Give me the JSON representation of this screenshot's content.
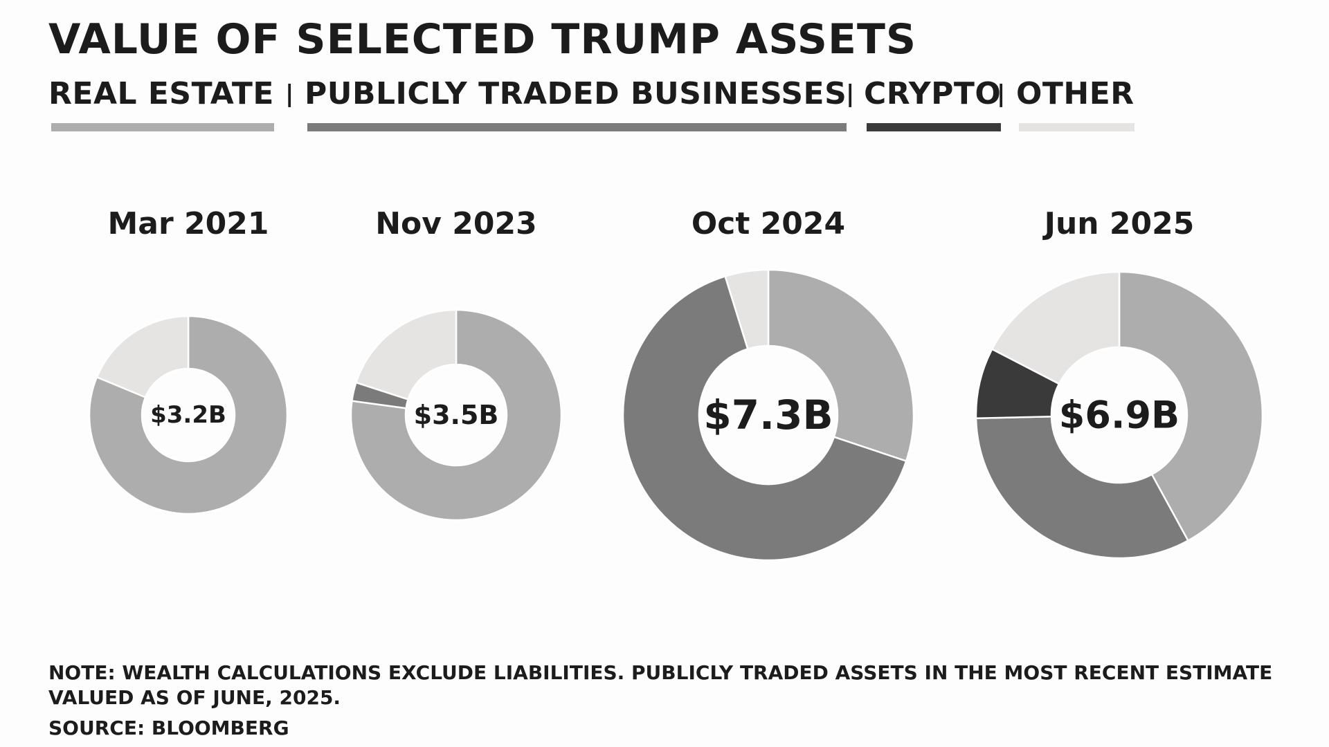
{
  "title": "VALUE OF SELECTED TRUMP ASSETS",
  "legend": [
    {
      "label": "REAL ESTATE",
      "color": "#adadad"
    },
    {
      "label": "PUBLICLY TRADED BUSINESSES",
      "color": "#7b7b7b"
    },
    {
      "label": "CRYPTO",
      "color": "#3a3a3a"
    },
    {
      "label": "OTHER",
      "color": "#e5e4e3"
    }
  ],
  "legend_separator": "|",
  "chart_data": {
    "type": "pie",
    "variant": "donut",
    "unit": "$B",
    "series_names": [
      "REAL ESTATE",
      "PUBLICLY TRADED BUSINESSES",
      "CRYPTO",
      "OTHER"
    ],
    "charts": [
      {
        "label": "Mar 2021",
        "total": 3.2,
        "total_label": "$3.2B",
        "values": [
          2.6,
          0,
          0,
          0.6
        ]
      },
      {
        "label": "Nov 2023",
        "total": 3.5,
        "total_label": "$3.5B",
        "values": [
          2.7,
          0.1,
          0,
          0.7
        ]
      },
      {
        "label": "Oct 2024",
        "total": 7.3,
        "total_label": "$7.3B",
        "values": [
          2.2,
          4.75,
          0,
          0.35
        ]
      },
      {
        "label": "Jun 2025",
        "total": 6.9,
        "total_label": "$6.9B",
        "values": [
          2.9,
          2.25,
          0.55,
          1.2
        ]
      }
    ]
  },
  "note": "NOTE: WEALTH CALCULATIONS EXCLUDE LIABILITIES. PUBLICLY TRADED ASSETS IN THE MOST RECENT ESTIMATE VALUED AS OF JUNE, 2025.",
  "source": "SOURCE: BLOOMBERG"
}
